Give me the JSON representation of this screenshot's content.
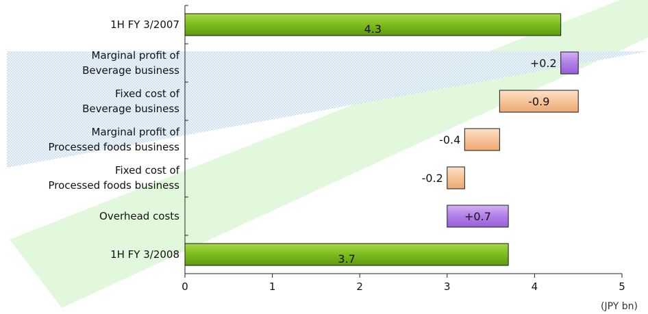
{
  "chart_data": {
    "type": "bar",
    "orientation": "horizontal",
    "subtype": "waterfall",
    "categories": [
      [
        "1H FY 3/2007"
      ],
      [
        "Marginal profit of",
        "Beverage business"
      ],
      [
        "Fixed cost of",
        "Beverage business"
      ],
      [
        "Marginal profit of",
        "Processed foods business"
      ],
      [
        "Fixed cost of",
        "Processed foods business"
      ],
      [
        "Overhead costs"
      ],
      [
        "1H FY 3/2008"
      ]
    ],
    "bars": [
      {
        "start": 0.0,
        "end": 4.3,
        "label": "4.3",
        "kind": "total",
        "label_pos": "inside"
      },
      {
        "start": 4.3,
        "end": 4.5,
        "label": "+0.2",
        "kind": "increase",
        "label_pos": "left"
      },
      {
        "start": 4.5,
        "end": 3.6,
        "label": "-0.9",
        "kind": "decrease",
        "label_pos": "inside"
      },
      {
        "start": 3.6,
        "end": 3.2,
        "label": "-0.4",
        "kind": "decrease",
        "label_pos": "left"
      },
      {
        "start": 3.2,
        "end": 3.0,
        "label": "-0.2",
        "kind": "decrease",
        "label_pos": "left"
      },
      {
        "start": 3.0,
        "end": 3.7,
        "label": "+0.7",
        "kind": "increase",
        "label_pos": "inside"
      },
      {
        "start": 0.0,
        "end": 3.7,
        "label": "3.7",
        "kind": "total",
        "label_pos": "inside"
      }
    ],
    "xlim": [
      0,
      5
    ],
    "xticks": [
      "0",
      "1",
      "2",
      "3",
      "4",
      "5"
    ],
    "unit_label": "(JPY bn)",
    "grid": false,
    "colors": {
      "total": "#7fbf1f",
      "increase": "#b07ee6",
      "decrease": "#f7c49a"
    }
  }
}
